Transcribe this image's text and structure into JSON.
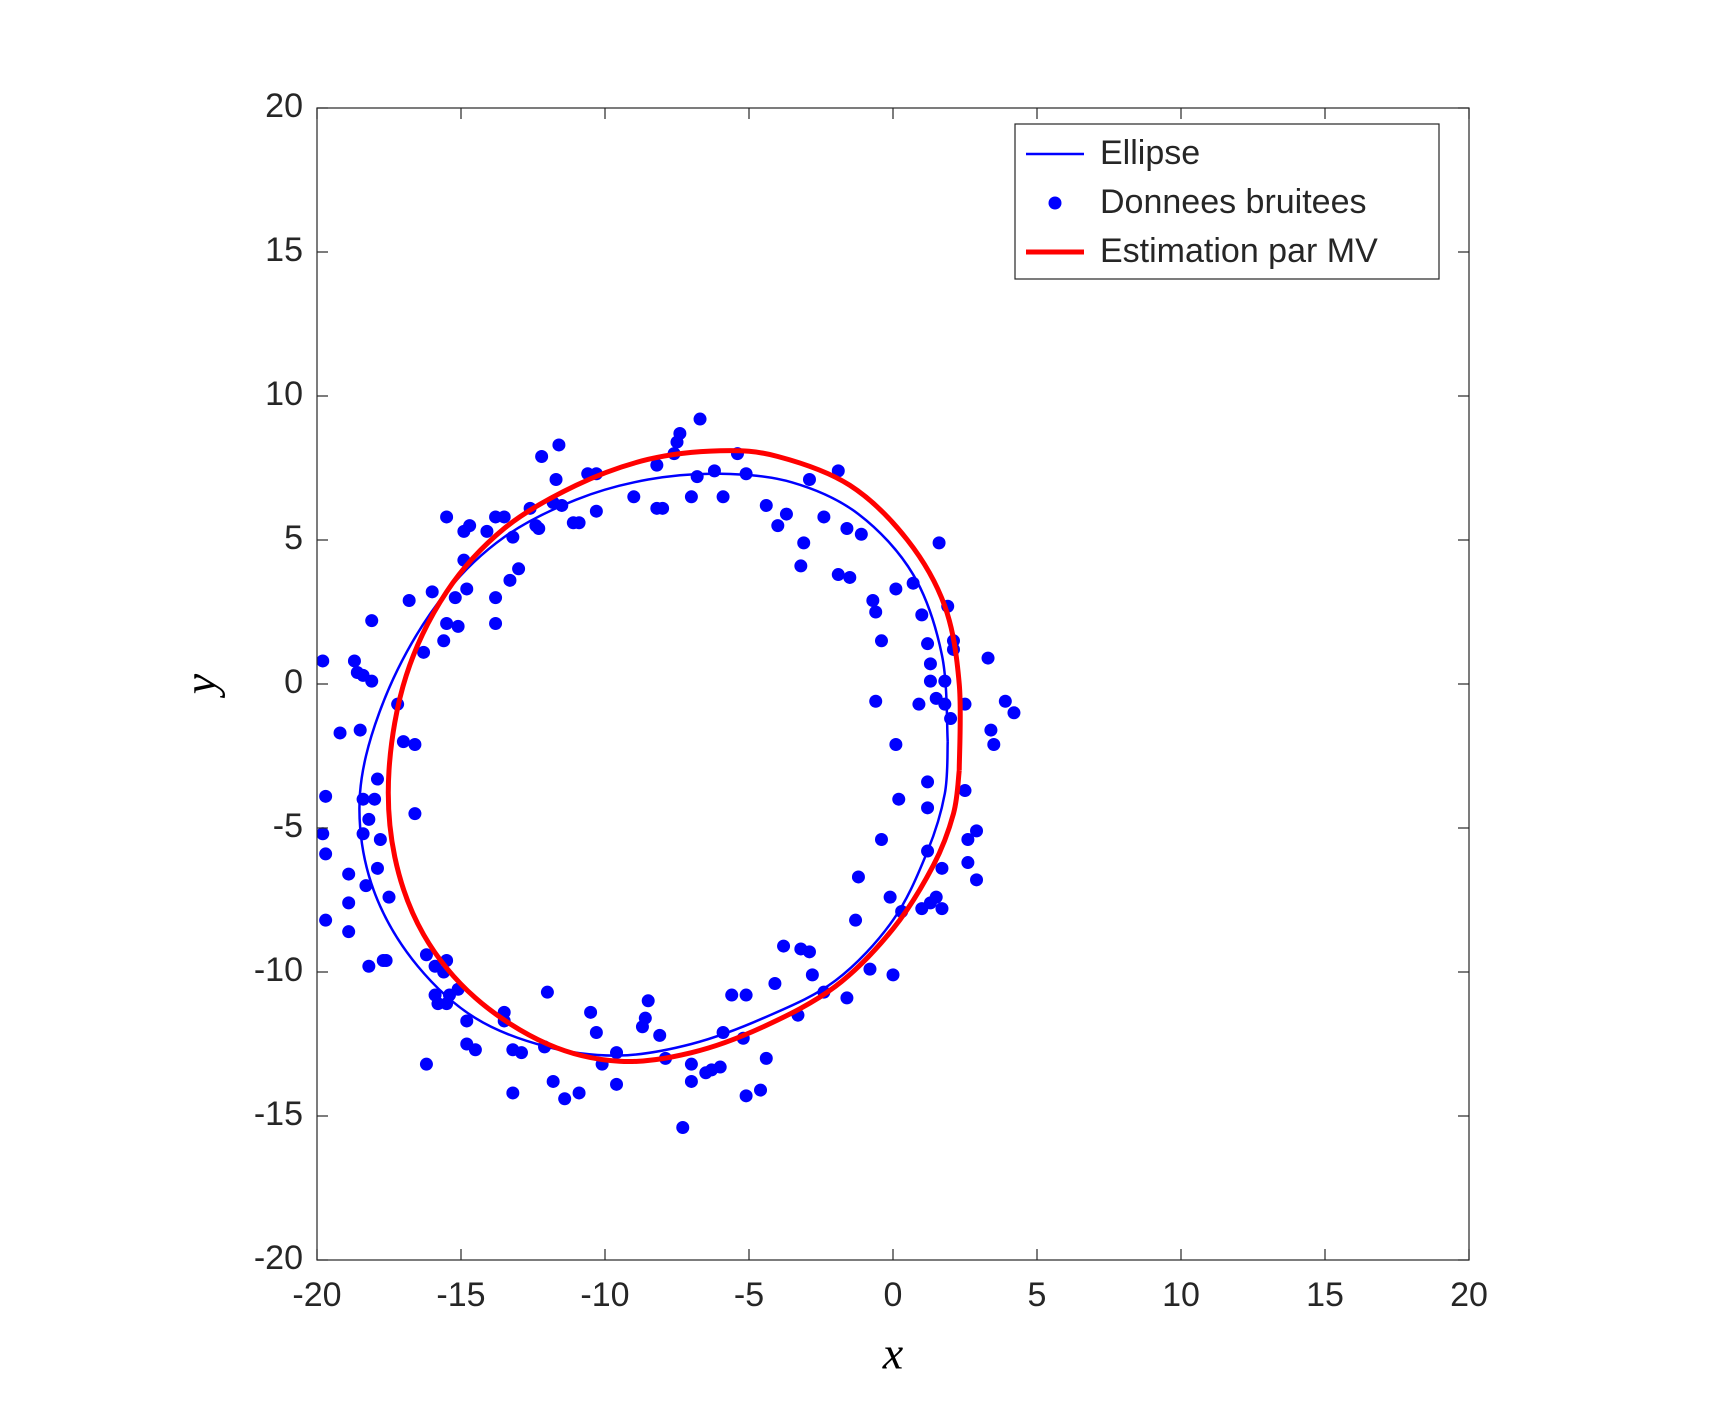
{
  "chart_data": {
    "type": "scatter",
    "x_label": "x",
    "y_label": "y",
    "xlim": [
      -20,
      20
    ],
    "ylim": [
      -20,
      20
    ],
    "xticks": [
      -20,
      -15,
      -10,
      -5,
      0,
      5,
      10,
      15,
      20
    ],
    "yticks": [
      -20,
      -15,
      -10,
      -5,
      0,
      5,
      10,
      15,
      20
    ],
    "legend": "upper right",
    "series": [
      {
        "name": "Ellipse",
        "type": "line",
        "color": "#0000ff",
        "line_width": 2.5,
        "x": [
          1.9,
          1.7,
          0.7,
          -1.2,
          -3.5,
          -6,
          -8.5,
          -11,
          -13.5,
          -15.5,
          -17.2,
          -18.3,
          -18.5,
          -17.9,
          -16.5,
          -14.5,
          -12,
          -9.5,
          -7,
          -4.5,
          -2,
          0,
          1.2,
          1.8,
          1.9
        ],
        "values": [
          -2,
          1,
          3.8,
          5.9,
          7,
          7.3,
          7.1,
          6.4,
          5.1,
          3.2,
          0.5,
          -2.5,
          -5,
          -7.5,
          -9.8,
          -11.6,
          -12.6,
          -12.9,
          -12.5,
          -11.6,
          -10.3,
          -8.2,
          -5.8,
          -3.8,
          -2
        ]
      },
      {
        "name": "Donnees bruitees",
        "type": "scatter",
        "color": "#0000ff",
        "x": [
          1.6,
          0.7,
          0.1,
          -0.7,
          -0.6,
          1.0,
          1.9,
          2.1,
          1.2,
          -0.4,
          1.3,
          1.3,
          2.1,
          1.8,
          1.5,
          1.8,
          0.9,
          -0.6,
          2.5,
          2.0,
          3.3,
          3.9,
          4.2,
          3.4,
          3.5,
          0.1,
          0.2,
          1.2,
          1.2,
          2.5,
          2.9,
          2.6,
          2.6,
          2.9,
          1.2,
          1.7,
          -0.4,
          -1.2,
          -0.1,
          0.3,
          1.0,
          1.3,
          1.5,
          1.7,
          -1.3,
          -0.8,
          0,
          -1.6,
          -2.4,
          -2.8,
          -2.9,
          -3.2,
          -3.8,
          -4.1,
          -3.3,
          -4.4,
          -4.6,
          -5.1,
          -5.1,
          -5.6,
          -5.2,
          -5.9,
          -6.0,
          -6.3,
          -6.5,
          -7.0,
          -7.0,
          -7.3,
          -7.9,
          -8.1,
          -8.5,
          -8.6,
          -8.7,
          -9.6,
          -9.6,
          -10.1,
          -10.3,
          -10.5,
          -10.9,
          -11.4,
          -11.8,
          -12.0,
          -12.1,
          -12.9,
          -13.2,
          -13.2,
          -13.5,
          -13.5,
          -14.5,
          -14.8,
          -14.8,
          -15.4,
          -15.1,
          -15.5,
          -15.5,
          -15.6,
          -15.9,
          -15.8,
          -15.9,
          -16.2,
          -16.2,
          -17.6,
          -17.7,
          -18.2,
          -17.5,
          -17.8,
          -17.9,
          -18.0,
          -17.9,
          -18.2,
          -18.3,
          -18.4,
          -18.4,
          -18.9,
          -18.9,
          -18.9,
          -19.7,
          -19.8,
          -19.7,
          -19.7,
          -19.2,
          -19.8,
          -18.7,
          -18.6,
          -18.4,
          -18.1,
          -18.5,
          -18.1,
          -17.2,
          -17.0,
          -16.6,
          -16.6,
          -16.8,
          -16.3,
          -16.0,
          -15.6,
          -15.5,
          -15.1,
          -15.2,
          -14.8,
          -14.9,
          -14.9,
          -14.7,
          -15.5,
          -14.1,
          -13.8,
          -13.5,
          -13.8,
          -13.8,
          -13.3,
          -13.0,
          -13.2,
          -12.6,
          -12.4,
          -12.3,
          -11.8,
          -11.5,
          -11.7,
          -12.2,
          -11.6,
          -11.1,
          -10.9,
          -10.6,
          -10.3,
          -10.3,
          -9.0,
          -8.2,
          -8.0,
          -8.2,
          -7.6,
          -7.5,
          -7.4,
          -6.7,
          -7.0,
          -6.8,
          -6.2,
          -5.9,
          -5.4,
          -5.1,
          -4.4,
          -4.0,
          -3.7,
          -3.1,
          -3.2,
          -2.9,
          -2.4,
          -1.9,
          -1.9,
          -1.5,
          -1.6,
          -1.1
        ],
        "values": [
          4.9,
          3.5,
          3.3,
          2.9,
          2.5,
          2.4,
          2.7,
          1.5,
          1.4,
          1.5,
          0.7,
          0.1,
          1.2,
          0.1,
          -0.5,
          -0.7,
          -0.7,
          -0.6,
          -0.7,
          -1.2,
          0.9,
          -0.6,
          -1.0,
          -1.6,
          -2.1,
          -2.1,
          -4.0,
          -3.4,
          -4.3,
          -3.7,
          -5.1,
          -5.4,
          -6.2,
          -6.8,
          -5.8,
          -6.4,
          -5.4,
          -6.7,
          -7.4,
          -7.9,
          -7.8,
          -7.6,
          -7.4,
          -7.8,
          -8.2,
          -9.9,
          -10.1,
          -10.9,
          -10.7,
          -10.1,
          -9.3,
          -9.2,
          -9.1,
          -10.4,
          -11.5,
          -13.0,
          -14.1,
          -14.3,
          -10.8,
          -10.8,
          -12.3,
          -12.1,
          -13.3,
          -13.4,
          -13.5,
          -13.2,
          -13.8,
          -15.4,
          -13.0,
          -12.2,
          -11.0,
          -11.6,
          -11.9,
          -12.8,
          -13.9,
          -13.2,
          -12.1,
          -11.4,
          -14.2,
          -14.4,
          -13.8,
          -10.7,
          -12.6,
          -12.8,
          -12.7,
          -14.2,
          -11.7,
          -11.4,
          -12.7,
          -12.5,
          -11.7,
          -10.8,
          -10.6,
          -11.1,
          -9.6,
          -10.0,
          -10.8,
          -11.1,
          -9.8,
          -13.2,
          -9.4,
          -9.6,
          -9.6,
          -9.8,
          -7.4,
          -5.4,
          -6.4,
          -4.0,
          -3.3,
          -4.7,
          -7.0,
          -4.0,
          -5.2,
          -6.6,
          -7.6,
          -8.6,
          -3.9,
          -5.2,
          -5.9,
          -8.2,
          -1.7,
          0.8,
          0.8,
          0.4,
          0.3,
          0.1,
          -1.6,
          2.2,
          -0.7,
          -2.0,
          -2.1,
          -4.5,
          2.9,
          1.1,
          3.2,
          1.5,
          2.1,
          2.0,
          3.0,
          3.3,
          4.3,
          5.3,
          5.5,
          5.8,
          5.3,
          5.8,
          5.8,
          3.0,
          2.1,
          3.6,
          4.0,
          5.1,
          6.1,
          5.5,
          5.4,
          6.3,
          6.2,
          7.1,
          7.9,
          8.3,
          5.6,
          5.6,
          7.3,
          7.3,
          6.0,
          6.5,
          6.1,
          6.1,
          7.6,
          8.0,
          8.4,
          8.7,
          9.2,
          6.5,
          7.2,
          7.4,
          6.5,
          8.0,
          7.3,
          6.2,
          5.5,
          5.9,
          4.9,
          4.1,
          7.1,
          5.8,
          7.4,
          3.8,
          3.7,
          5.4,
          5.2
        ]
      },
      {
        "name": "Estimation par MV",
        "type": "line",
        "color": "#ff0000",
        "line_width": 5,
        "x": [
          2.3,
          2.3,
          1.8,
          0.5,
          -1.5,
          -4,
          -6,
          -8.5,
          -11,
          -13.5,
          -15.5,
          -16.9,
          -17.5,
          -17.3,
          -16.3,
          -14.5,
          -12,
          -9.5,
          -7,
          -4.5,
          -2,
          0,
          1.4,
          2.1,
          2.3
        ],
        "values": [
          -3,
          0,
          2.7,
          5,
          6.9,
          7.9,
          8.1,
          7.8,
          6.9,
          5.4,
          3.2,
          0.3,
          -3,
          -6,
          -8.7,
          -10.9,
          -12.5,
          -13.1,
          -12.8,
          -11.9,
          -10.5,
          -8.5,
          -6.3,
          -4.5,
          -3
        ]
      }
    ]
  }
}
